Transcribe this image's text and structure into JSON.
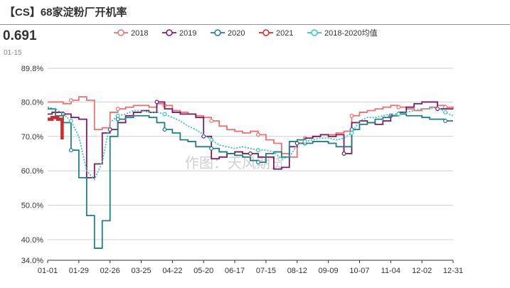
{
  "header": {
    "title": "【CS】68家淀粉厂开机率",
    "latest_value": "0.691",
    "latest_date": "01-15",
    "watermark": "作图：天风期货"
  },
  "colors": {
    "2018": "#f07070",
    "2019": "#7b1a66",
    "2020": "#1f7f86",
    "2021": "#d62828",
    "avg": "#30c8c0",
    "grid": "#cfcfcf",
    "axis": "#333333"
  },
  "chart_data": {
    "type": "line",
    "title": "【CS】68家淀粉厂开机率",
    "x_tick_labels": [
      "01-01",
      "01-29",
      "02-26",
      "03-25",
      "04-22",
      "05-20",
      "06-17",
      "07-15",
      "08-12",
      "09-09",
      "10-07",
      "11-04",
      "12-02",
      "12-31"
    ],
    "y_tick_labels": [
      "89.8%",
      "80.0%",
      "70.0%",
      "60.0%",
      "50.0%",
      "40.0%",
      "34.0%"
    ],
    "y_tick_values": [
      89.8,
      80,
      70,
      60,
      50,
      40,
      34
    ],
    "ylim": [
      34,
      89.8
    ],
    "xlim_day_of_year": [
      1,
      365
    ],
    "grid": true,
    "legend_position": "top",
    "legend": [
      "2018",
      "2019",
      "2020",
      "2021",
      "2018-2020均值"
    ],
    "series": [
      {
        "name": "2018",
        "style": "step",
        "x": [
          1,
          8,
          15,
          22,
          29,
          36,
          43,
          50,
          57,
          64,
          71,
          78,
          85,
          92,
          99,
          106,
          113,
          120,
          127,
          134,
          141,
          148,
          155,
          162,
          169,
          176,
          183,
          190,
          197,
          204,
          211,
          218,
          225,
          232,
          239,
          246,
          253,
          260,
          267,
          274,
          281,
          288,
          295,
          302,
          309,
          316,
          323,
          330,
          337,
          344,
          351,
          358,
          365
        ],
        "y": [
          80.0,
          80.0,
          79.5,
          80.5,
          81.5,
          80.5,
          72.0,
          72.5,
          77.0,
          78.0,
          78.5,
          79.0,
          79.0,
          78.5,
          79.5,
          79.0,
          77.5,
          77.0,
          76.5,
          76.0,
          75.5,
          74.5,
          73.0,
          72.0,
          71.5,
          71.0,
          71.5,
          70.5,
          69.0,
          68.0,
          65.0,
          64.0,
          68.0,
          69.5,
          70.0,
          70.5,
          70.5,
          71.0,
          71.5,
          76.0,
          77.0,
          77.5,
          78.0,
          78.5,
          79.0,
          78.5,
          78.0,
          77.5,
          78.0,
          78.5,
          79.0,
          78.5,
          78.0
        ]
      },
      {
        "name": "2019",
        "style": "step",
        "x": [
          1,
          5,
          8,
          15,
          22,
          29,
          36,
          43,
          50,
          57,
          64,
          71,
          78,
          85,
          92,
          99,
          106,
          113,
          120,
          127,
          134,
          141,
          148,
          155,
          162,
          169,
          176,
          183,
          190,
          197,
          204,
          211,
          218,
          225,
          232,
          239,
          246,
          253,
          260,
          267,
          274,
          281,
          288,
          295,
          302,
          309,
          316,
          323,
          330,
          337,
          344,
          351,
          358,
          365
        ],
        "y": [
          76.5,
          77.0,
          77.0,
          76.5,
          75.5,
          75.0,
          58.0,
          62.0,
          71.0,
          72.0,
          74.0,
          76.0,
          77.0,
          77.5,
          77.0,
          80.0,
          78.0,
          77.0,
          76.5,
          76.5,
          75.5,
          70.0,
          63.5,
          64.0,
          65.0,
          65.5,
          65.0,
          65.0,
          64.0,
          64.0,
          60.5,
          61.0,
          67.0,
          68.0,
          69.5,
          70.0,
          70.5,
          70.0,
          70.5,
          65.0,
          74.0,
          74.5,
          74.0,
          73.5,
          74.5,
          76.0,
          77.0,
          78.5,
          79.5,
          80.0,
          80.0,
          78.0,
          78.0,
          78.0
        ]
      },
      {
        "name": "2020",
        "style": "step",
        "x": [
          1,
          8,
          15,
          22,
          29,
          36,
          43,
          50,
          57,
          64,
          71,
          78,
          85,
          92,
          99,
          106,
          113,
          120,
          127,
          134,
          141,
          148,
          155,
          162,
          169,
          176,
          183,
          190,
          197,
          204,
          211,
          218,
          225,
          232,
          239,
          246,
          253,
          260,
          267,
          274,
          281,
          288,
          295,
          302,
          309,
          316,
          323,
          330,
          337,
          344,
          351,
          358,
          365
        ],
        "y": [
          78.0,
          76.0,
          74.0,
          66.0,
          58.0,
          47.0,
          37.5,
          45.5,
          70.0,
          75.0,
          75.5,
          76.0,
          76.0,
          75.5,
          74.0,
          72.0,
          71.0,
          69.0,
          68.5,
          67.0,
          67.0,
          66.5,
          65.5,
          65.0,
          64.5,
          64.0,
          63.0,
          62.5,
          65.0,
          65.5,
          64.0,
          68.5,
          69.0,
          68.0,
          68.5,
          68.5,
          68.0,
          67.0,
          67.0,
          72.0,
          73.5,
          74.0,
          75.0,
          75.5,
          76.0,
          76.5,
          76.0,
          76.0,
          75.5,
          75.0,
          75.0,
          74.5,
          74.5
        ]
      },
      {
        "name": "2021",
        "style": "step",
        "x": [
          1,
          5,
          10,
          14
        ],
        "y": [
          75.0,
          75.5,
          75.0,
          69.1
        ]
      },
      {
        "name": "2018-2020均值",
        "style": "dotted",
        "x": [
          1,
          8,
          15,
          22,
          29,
          36,
          43,
          50,
          57,
          64,
          71,
          78,
          85,
          92,
          99,
          106,
          113,
          120,
          127,
          134,
          141,
          148,
          155,
          162,
          169,
          176,
          183,
          190,
          197,
          204,
          211,
          218,
          225,
          232,
          239,
          246,
          253,
          260,
          267,
          274,
          281,
          288,
          295,
          302,
          309,
          316,
          323,
          330,
          337,
          344,
          351,
          358,
          365
        ],
        "y": [
          78.5,
          78.0,
          76.5,
          74.5,
          70.0,
          60.0,
          57.5,
          62.5,
          74.0,
          76.0,
          76.5,
          77.5,
          77.5,
          77.0,
          77.0,
          76.5,
          75.5,
          74.5,
          73.0,
          72.0,
          70.5,
          69.0,
          67.5,
          67.0,
          66.5,
          67.0,
          66.5,
          66.0,
          66.0,
          65.5,
          63.5,
          64.0,
          67.5,
          68.5,
          69.0,
          69.5,
          69.5,
          69.0,
          69.5,
          71.0,
          74.5,
          75.5,
          75.5,
          76.0,
          76.5,
          76.5,
          77.0,
          77.5,
          78.0,
          78.0,
          78.5,
          77.0,
          76.0
        ]
      }
    ]
  }
}
